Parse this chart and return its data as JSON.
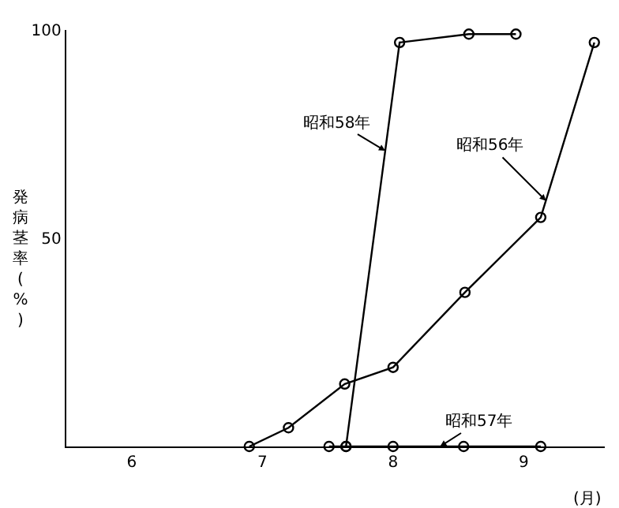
{
  "chart_data": {
    "type": "line",
    "ylabel": "発病茎率(%)",
    "xlabel": "(月)",
    "series": [
      {
        "color": "#000000",
        "x": [
          7.4,
          7.7,
          8.13,
          8.5,
          9.05,
          9.63,
          10.04
        ],
        "values": [
          0,
          4.5,
          15,
          19,
          37,
          55,
          97
        ]
      },
      {
        "color": "#000000",
        "x": [
          8.01,
          8.14,
          8.5,
          9.04,
          9.63
        ],
        "values": [
          0,
          0,
          0,
          0,
          0
        ]
      },
      {
        "color": "#000000",
        "x": [
          8.14,
          8.55,
          9.08,
          9.44
        ],
        "values": [
          0,
          97,
          99,
          99
        ]
      }
    ],
    "annotations": [
      {
        "text": "昭和58年",
        "x": 8.44,
        "y": 71
      },
      {
        "text": "昭和56年",
        "x": 9.67,
        "y": 59
      },
      {
        "text": "昭和57年",
        "x": 8.86,
        "y": 0
      }
    ],
    "xlim": [
      6.0,
      10.12
    ],
    "ylim": [
      0,
      100
    ],
    "xticks": [
      {
        "value": 6.5,
        "label": "6"
      },
      {
        "value": 7.5,
        "label": "7"
      },
      {
        "value": 8.5,
        "label": "8"
      },
      {
        "value": 9.5,
        "label": "9"
      }
    ],
    "yticks": [
      50,
      100
    ],
    "marker": "circle",
    "line_style": "solid"
  }
}
